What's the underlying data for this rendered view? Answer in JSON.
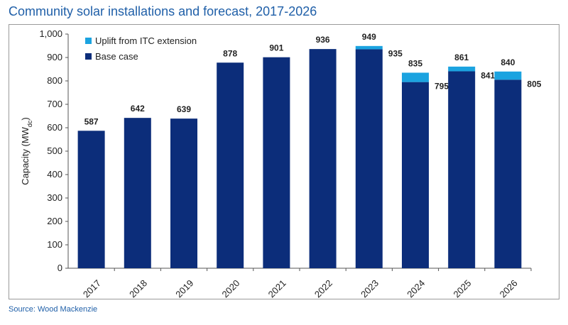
{
  "header": {
    "title": "Community solar installations and forecast, 2017-2026"
  },
  "footer": {
    "source": "Source: Wood Mackenzie"
  },
  "chart_data": {
    "type": "bar",
    "stacked": true,
    "title": "Community solar installations and forecast, 2017-2026",
    "ylabel": "Capacity (MWdc)",
    "ylabel_main": "Capacity (MW",
    "ylabel_sub": "dc",
    "ylabel_close": ")",
    "xlabel": "",
    "ylim": [
      0,
      1000
    ],
    "yticks": [
      0,
      100,
      200,
      300,
      400,
      500,
      600,
      700,
      800,
      900,
      1000
    ],
    "ytick_labels": [
      "0",
      "100",
      "200",
      "300",
      "400",
      "500",
      "600",
      "700",
      "800",
      "900",
      "1,000"
    ],
    "grid": false,
    "legend_position": "top-left",
    "categories": [
      "2017",
      "2018",
      "2019",
      "2020",
      "2021",
      "2022",
      "2023",
      "2024",
      "2025",
      "2026"
    ],
    "series": [
      {
        "name": "Base case",
        "color": "#0c2d7a",
        "values": [
          587,
          642,
          639,
          878,
          901,
          936,
          935,
          795,
          841,
          805
        ]
      },
      {
        "name": "Uplift from ITC extension",
        "color": "#1ba3e0",
        "values": [
          0,
          0,
          0,
          0,
          0,
          0,
          14,
          40,
          20,
          35
        ]
      }
    ],
    "total_labels": [
      "587",
      "642",
      "639",
      "878",
      "901",
      "936",
      "949",
      "835",
      "861",
      "840"
    ],
    "base_labels": [
      "",
      "",
      "",
      "",
      "",
      "",
      "935",
      "795",
      "841",
      "805"
    ]
  }
}
